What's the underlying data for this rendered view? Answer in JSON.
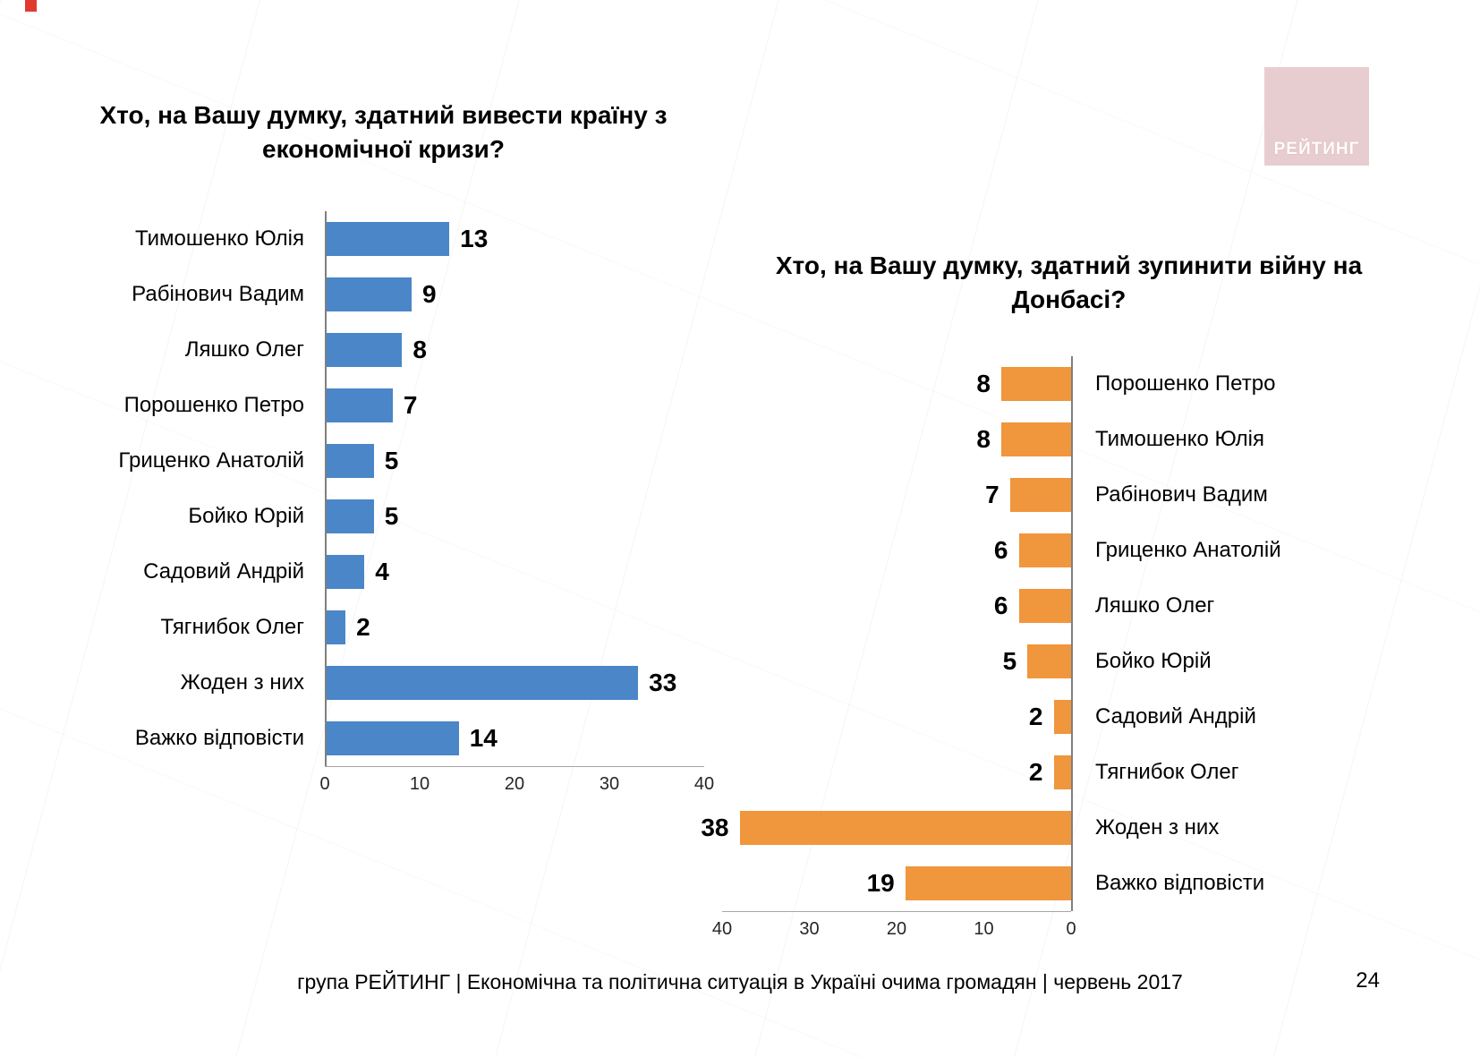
{
  "slide": {
    "logo_text": "РЕЙТИНГ",
    "footer": "група РЕЙТИНГ  |  Економічна та політична ситуація в Україні очима громадян  |  червень 2017",
    "page_number": "24"
  },
  "colors": {
    "bar_blue": "#4a86c8",
    "bar_orange": "#f0963c",
    "logo_background": "#e8cdd0",
    "corner_mark_red": "#e03a2f",
    "axis_gray": "#7f7f7f"
  },
  "chart_data": [
    {
      "type": "bar",
      "orientation": "horizontal",
      "direction": "left-to-right",
      "title": "Хто, на Вашу думку, здатний вивести країну з економічної кризи?",
      "categories": [
        "Тимошенко Юлія",
        "Рабінович Вадим",
        "Ляшко Олег",
        "Порошенко Петро",
        "Гриценко Анатолій",
        "Бойко Юрій",
        "Садовий Андрій",
        "Тягнибок Олег",
        "Жоден з них",
        "Важко відповісти"
      ],
      "values": [
        13,
        9,
        8,
        7,
        5,
        5,
        4,
        2,
        33,
        14
      ],
      "bar_color": "#4a86c8",
      "xlim": [
        0,
        40
      ],
      "ticks": [
        0,
        10,
        20,
        30,
        40
      ],
      "value_labels": true,
      "grid": false,
      "legend": false
    },
    {
      "type": "bar",
      "orientation": "horizontal",
      "direction": "right-to-left",
      "title": "Хто, на Вашу думку, здатний зупинити війну на Донбасі?",
      "categories": [
        "Порошенко Петро",
        "Тимошенко Юлія",
        "Рабінович Вадим",
        "Гриценко Анатолій",
        "Ляшко Олег",
        "Бойко Юрій",
        "Садовий Андрій",
        "Тягнибок Олег",
        "Жоден з них",
        "Важко відповісти"
      ],
      "values": [
        8,
        8,
        7,
        6,
        6,
        5,
        2,
        2,
        38,
        19
      ],
      "bar_color": "#f0963c",
      "xlim": [
        0,
        40
      ],
      "ticks": [
        40,
        30,
        20,
        10,
        0
      ],
      "value_labels": true,
      "grid": false,
      "legend": false
    }
  ]
}
